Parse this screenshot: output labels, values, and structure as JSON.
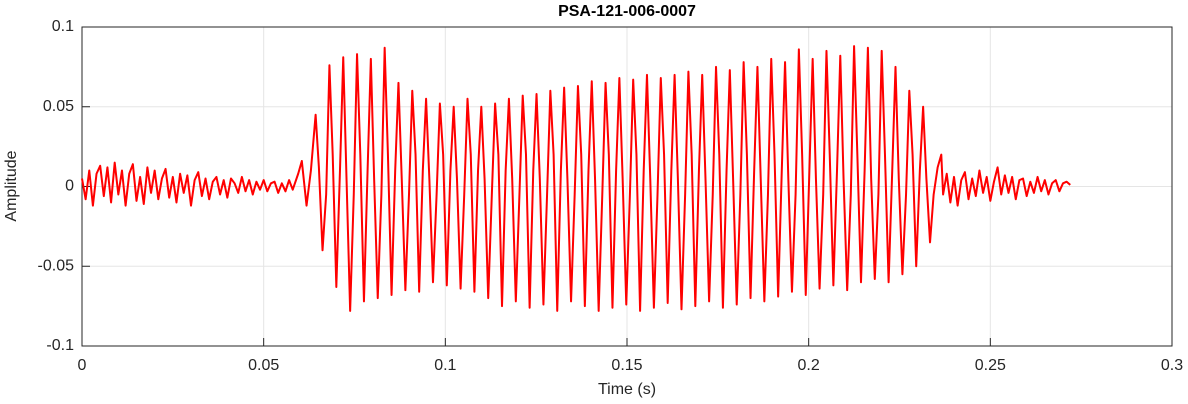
{
  "chart_data": {
    "type": "line",
    "title": "PSA-121-006-0007",
    "xlabel": "Time (s)",
    "ylabel": "Amplitude",
    "color": "#ff0000",
    "grid": true,
    "xlim": [
      0,
      0.3
    ],
    "ylim": [
      -0.1,
      0.1
    ],
    "xticks": [
      0,
      0.05,
      0.1,
      0.15,
      0.2,
      0.25,
      0.3
    ],
    "yticks": [
      -0.1,
      -0.05,
      0,
      0.05,
      0.1
    ],
    "x": [
      0,
      0.001,
      0.002,
      0.003,
      0.004,
      0.005,
      0.006,
      0.007,
      0.008,
      0.009,
      0.01,
      0.011,
      0.012,
      0.013,
      0.014,
      0.015,
      0.016,
      0.017,
      0.018,
      0.019,
      0.02,
      0.021,
      0.022,
      0.023,
      0.024,
      0.025,
      0.026,
      0.027,
      0.028,
      0.029,
      0.03,
      0.031,
      0.032,
      0.033,
      0.034,
      0.035,
      0.036,
      0.037,
      0.038,
      0.039,
      0.04,
      0.041,
      0.042,
      0.043,
      0.044,
      0.045,
      0.046,
      0.047,
      0.048,
      0.049,
      0.05,
      0.051,
      0.052,
      0.053,
      0.054,
      0.055,
      0.056,
      0.057,
      0.058,
      0.0595,
      0.0605,
      0.0618,
      0.063,
      0.0643,
      0.0652,
      0.0662,
      0.0672,
      0.0681,
      0.069,
      0.07,
      0.071,
      0.0719,
      0.0728,
      0.0738,
      0.0748,
      0.0757,
      0.0766,
      0.0776,
      0.0786,
      0.0795,
      0.0804,
      0.0814,
      0.0824,
      0.0833,
      0.0842,
      0.0852,
      0.0862,
      0.0871,
      0.088,
      0.089,
      0.09,
      0.0909,
      0.0918,
      0.0928,
      0.0938,
      0.0947,
      0.0956,
      0.0966,
      0.0976,
      0.0985,
      0.0994,
      0.1004,
      0.1014,
      0.1023,
      0.1032,
      0.1042,
      0.1052,
      0.1061,
      0.107,
      0.108,
      0.109,
      0.1099,
      0.1108,
      0.1118,
      0.1128,
      0.1137,
      0.1146,
      0.1156,
      0.1166,
      0.1175,
      0.1184,
      0.1194,
      0.1204,
      0.1213,
      0.1222,
      0.1232,
      0.1242,
      0.1251,
      0.126,
      0.127,
      0.128,
      0.1289,
      0.1298,
      0.1308,
      0.1318,
      0.1327,
      0.1336,
      0.1346,
      0.1356,
      0.1365,
      0.1374,
      0.1384,
      0.1394,
      0.1403,
      0.1412,
      0.1422,
      0.1432,
      0.1441,
      0.145,
      0.146,
      0.147,
      0.1479,
      0.1488,
      0.1498,
      0.1508,
      0.1517,
      0.1526,
      0.1536,
      0.1546,
      0.1555,
      0.1564,
      0.1574,
      0.1584,
      0.1593,
      0.1602,
      0.1612,
      0.1622,
      0.1631,
      0.164,
      0.165,
      0.166,
      0.1669,
      0.1678,
      0.1688,
      0.1698,
      0.1707,
      0.1716,
      0.1726,
      0.1736,
      0.1745,
      0.1754,
      0.1764,
      0.1774,
      0.1783,
      0.1792,
      0.1802,
      0.1812,
      0.1821,
      0.183,
      0.184,
      0.185,
      0.1859,
      0.1868,
      0.1878,
      0.1888,
      0.1897,
      0.1906,
      0.1916,
      0.1926,
      0.1935,
      0.1944,
      0.1954,
      0.1964,
      0.1973,
      0.1982,
      0.1992,
      0.2002,
      0.2011,
      0.202,
      0.203,
      0.204,
      0.2049,
      0.2058,
      0.2068,
      0.2078,
      0.2087,
      0.2096,
      0.2106,
      0.2116,
      0.2125,
      0.2134,
      0.2144,
      0.2154,
      0.2163,
      0.2172,
      0.2182,
      0.2192,
      0.2201,
      0.221,
      0.222,
      0.223,
      0.2239,
      0.2248,
      0.2258,
      0.2268,
      0.2277,
      0.2286,
      0.2296,
      0.2306,
      0.2315,
      0.2324,
      0.2334,
      0.2344,
      0.2355,
      0.2365,
      0.237,
      0.238,
      0.239,
      0.24,
      0.241,
      0.242,
      0.243,
      0.244,
      0.245,
      0.246,
      0.247,
      0.248,
      0.249,
      0.25,
      0.251,
      0.252,
      0.253,
      0.254,
      0.255,
      0.256,
      0.257,
      0.258,
      0.259,
      0.26,
      0.261,
      0.262,
      0.263,
      0.264,
      0.265,
      0.266,
      0.267,
      0.268,
      0.269,
      0.27,
      0.271,
      0.272
    ],
    "values": [
      0.005,
      -0.008,
      0.01,
      -0.012,
      0.008,
      0.013,
      -0.006,
      0.012,
      -0.01,
      0.015,
      -0.005,
      0.01,
      -0.012,
      0.008,
      0.014,
      -0.009,
      0.006,
      -0.011,
      0.012,
      -0.004,
      0.01,
      -0.008,
      0.005,
      0.011,
      -0.007,
      0.006,
      -0.01,
      0.008,
      -0.004,
      0.007,
      -0.012,
      0.004,
      0.009,
      -0.006,
      0.005,
      -0.008,
      0.003,
      0.006,
      -0.005,
      0.004,
      -0.007,
      0.005,
      0.002,
      -0.004,
      0.006,
      -0.003,
      0.004,
      -0.005,
      0.003,
      -0.002,
      0.004,
      -0.003,
      0.002,
      0.003,
      -0.004,
      0.002,
      -0.003,
      0.004,
      -0.002,
      0.008,
      0.016,
      -0.012,
      0.01,
      0.045,
      0.012,
      -0.04,
      -0.005,
      0.076,
      0.02,
      -0.063,
      0.01,
      0.081,
      0.005,
      -0.078,
      -0.005,
      0.083,
      0.02,
      -0.072,
      0.01,
      0.08,
      0.005,
      -0.07,
      -0.005,
      0.087,
      0.02,
      -0.068,
      0.01,
      0.065,
      0.005,
      -0.065,
      -0.005,
      0.06,
      0.02,
      -0.066,
      0.01,
      0.055,
      0.005,
      -0.06,
      -0.005,
      0.052,
      0.02,
      -0.062,
      0.01,
      0.05,
      0.005,
      -0.064,
      -0.005,
      0.055,
      0.02,
      -0.066,
      0.01,
      0.05,
      0.005,
      -0.07,
      -0.005,
      0.052,
      0.02,
      -0.075,
      0.01,
      0.055,
      0.005,
      -0.072,
      -0.005,
      0.057,
      0.02,
      -0.076,
      0.01,
      0.058,
      0.005,
      -0.074,
      -0.005,
      0.06,
      0.02,
      -0.078,
      0.01,
      0.062,
      0.005,
      -0.072,
      -0.005,
      0.063,
      0.02,
      -0.075,
      0.01,
      0.066,
      0.005,
      -0.078,
      -0.005,
      0.065,
      0.02,
      -0.076,
      0.01,
      0.068,
      0.005,
      -0.074,
      -0.005,
      0.067,
      0.02,
      -0.078,
      0.01,
      0.07,
      0.005,
      -0.076,
      -0.005,
      0.068,
      0.02,
      -0.073,
      0.01,
      0.07,
      0.005,
      -0.077,
      -0.005,
      0.072,
      0.02,
      -0.075,
      0.01,
      0.07,
      0.005,
      -0.072,
      -0.005,
      0.075,
      0.02,
      -0.076,
      0.01,
      0.073,
      0.005,
      -0.074,
      -0.005,
      0.078,
      0.02,
      -0.07,
      0.01,
      0.075,
      0.005,
      -0.072,
      -0.005,
      0.08,
      0.02,
      -0.069,
      0.01,
      0.078,
      0.005,
      -0.066,
      -0.005,
      0.086,
      0.02,
      -0.068,
      0.01,
      0.08,
      0.005,
      -0.064,
      -0.005,
      0.085,
      0.02,
      -0.062,
      0.01,
      0.082,
      0.005,
      -0.065,
      -0.005,
      0.088,
      0.02,
      -0.06,
      0.01,
      0.087,
      0.005,
      -0.058,
      -0.005,
      0.085,
      0.02,
      -0.06,
      0.01,
      0.075,
      0.005,
      -0.055,
      -0.005,
      0.06,
      0.02,
      -0.05,
      0.01,
      0.05,
      0.005,
      -0.035,
      -0.005,
      0.012,
      0.02,
      -0.005,
      0.008,
      -0.01,
      0.006,
      -0.012,
      0.004,
      0.009,
      -0.008,
      0.005,
      -0.006,
      0.01,
      -0.004,
      0.006,
      -0.009,
      0.003,
      0.012,
      -0.005,
      0.007,
      -0.004,
      0.006,
      -0.008,
      0.004,
      0.005,
      -0.006,
      0.003,
      -0.004,
      0.006,
      -0.003,
      0.004,
      -0.005,
      0.002,
      0.004,
      -0.003,
      0.002,
      0.003,
      0.001
    ]
  }
}
